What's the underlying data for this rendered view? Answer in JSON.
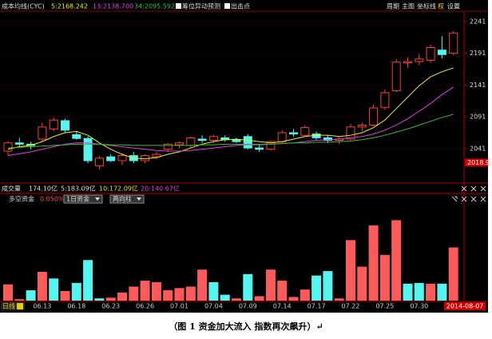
{
  "toolbar": [
    "周期",
    "主图",
    "坐标线",
    "权",
    "设置"
  ],
  "volume": {
    "title": "成交量",
    "value": "174.10亿",
    "ma": [
      "5:183.09亿",
      "10:172.09亿",
      "20:140.67亿"
    ]
  },
  "period_label": "日线",
  "caption": "（图 1    资金加大流入  指数再次飙升）↵",
  "chart_data": [
    {
      "type": "candlestick",
      "title": "成本均线(CYC)",
      "checkboxes": [
        "筹位异动预测",
        "出击点"
      ],
      "open": [
        2037,
        2050,
        2048,
        2056,
        2072,
        2085,
        2063,
        2057,
        2014,
        2028,
        2022,
        2030,
        2022,
        2028,
        2040,
        2047,
        2046,
        2056,
        2054,
        2058,
        2055,
        2060,
        2042,
        2040,
        2052,
        2066,
        2062,
        2064,
        2058,
        2054,
        2056,
        2075,
        2078,
        2106,
        2132,
        2176,
        2178,
        2180,
        2196,
        2191
      ],
      "high": [
        2053,
        2058,
        2052,
        2082,
        2090,
        2088,
        2068,
        2060,
        2030,
        2032,
        2034,
        2036,
        2032,
        2036,
        2050,
        2052,
        2060,
        2062,
        2063,
        2062,
        2058,
        2064,
        2048,
        2054,
        2070,
        2072,
        2078,
        2068,
        2062,
        2060,
        2080,
        2082,
        2110,
        2134,
        2182,
        2185,
        2190,
        2205,
        2218,
        2226
      ],
      "low": [
        2030,
        2044,
        2040,
        2052,
        2068,
        2066,
        2055,
        2018,
        2008,
        2020,
        2015,
        2018,
        2018,
        2024,
        2036,
        2042,
        2042,
        2050,
        2050,
        2052,
        2050,
        2040,
        2036,
        2038,
        2048,
        2060,
        2060,
        2055,
        2050,
        2048,
        2054,
        2068,
        2076,
        2102,
        2130,
        2168,
        2172,
        2176,
        2183,
        2188
      ],
      "close": [
        2050,
        2048,
        2046,
        2075,
        2086,
        2070,
        2057,
        2022,
        2026,
        2022,
        2030,
        2022,
        2030,
        2032,
        2048,
        2050,
        2058,
        2054,
        2060,
        2055,
        2052,
        2042,
        2040,
        2052,
        2066,
        2064,
        2074,
        2058,
        2054,
        2056,
        2075,
        2078,
        2105,
        2129,
        2177,
        2178,
        2182,
        2200,
        2189,
        2223
      ],
      "up_color": "#ff3c3c",
      "down_color": "#54f4f0",
      "series": [
        {
          "name": "5:2168.242",
          "color": "#f0f000",
          "values": [
            2040,
            2044,
            2046,
            2052,
            2060,
            2066,
            2068,
            2062,
            2050,
            2040,
            2032,
            2026,
            2025,
            2027,
            2032,
            2036,
            2042,
            2048,
            2052,
            2055,
            2056,
            2054,
            2052,
            2050,
            2052,
            2056,
            2060,
            2062,
            2062,
            2060,
            2062,
            2066,
            2074,
            2086,
            2104,
            2122,
            2140,
            2154,
            2162,
            2168
          ]
        },
        {
          "name": "13:2138.700",
          "color": "#e040e0",
          "values": [
            2030,
            2033,
            2036,
            2040,
            2044,
            2048,
            2050,
            2050,
            2048,
            2046,
            2044,
            2042,
            2040,
            2038,
            2037,
            2037,
            2038,
            2040,
            2042,
            2044,
            2046,
            2047,
            2047,
            2048,
            2049,
            2050,
            2052,
            2054,
            2055,
            2056,
            2058,
            2060,
            2064,
            2070,
            2078,
            2088,
            2100,
            2112,
            2126,
            2138
          ]
        },
        {
          "name": "34:2095.592",
          "color": "#30c030",
          "values": [
            2042,
            2043,
            2044,
            2045,
            2046,
            2047,
            2048,
            2048,
            2048,
            2047,
            2047,
            2046,
            2046,
            2046,
            2046,
            2046,
            2046,
            2047,
            2047,
            2048,
            2048,
            2048,
            2048,
            2048,
            2049,
            2050,
            2050,
            2051,
            2051,
            2052,
            2053,
            2055,
            2058,
            2062,
            2067,
            2072,
            2078,
            2084,
            2090,
            2095
          ]
        }
      ],
      "ylim": [
        1988,
        2256
      ],
      "yticks": [
        2041,
        2091,
        2141,
        2191,
        2241
      ],
      "cursor_price": 2018.9,
      "grid": true
    },
    {
      "type": "bar",
      "title": "多空资金",
      "ratio": "0.050%",
      "period": "1日资金",
      "style": "两向柱",
      "categories": [
        null,
        null,
        null,
        "06.13",
        null,
        null,
        "06.18",
        null,
        null,
        "06.23",
        null,
        null,
        "06.26",
        null,
        null,
        "07.01",
        null,
        null,
        "07.04",
        null,
        null,
        "07.09",
        null,
        null,
        "07.14",
        null,
        null,
        "07.17",
        null,
        null,
        "07.22",
        null,
        null,
        "07.25",
        null,
        null,
        "07.30",
        null,
        null,
        null
      ],
      "current_date": "2014-08-07",
      "values": [
        22,
        2,
        14,
        39,
        30,
        13,
        24,
        55,
        3,
        4,
        11,
        19,
        27,
        25,
        14,
        17,
        19,
        42,
        25,
        8,
        3,
        36,
        6,
        42,
        27,
        5,
        15,
        34,
        40,
        3,
        82,
        46,
        102,
        62,
        109,
        23,
        24,
        23,
        23,
        72
      ],
      "colors": [
        "#ff5a5a",
        "#ff5a5a",
        "#54f4f0",
        "#ff5a5a",
        "#54f4f0",
        "#ff5a5a",
        "#54f4f0",
        "#54f4f0",
        "#54f4f0",
        "#ff5a5a",
        "#ff5a5a",
        "#ff5a5a",
        "#ff5a5a",
        "#ff5a5a",
        "#ff5a5a",
        "#ff5a5a",
        "#ff5a5a",
        "#ff5a5a",
        "#54f4f0",
        "#54f4f0",
        "#ff5a5a",
        "#54f4f0",
        "#ff5a5a",
        "#ff5a5a",
        "#ff5a5a",
        "#ff5a5a",
        "#ff5a5a",
        "#54f4f0",
        "#54f4f0",
        "#ff5a5a",
        "#ff5a5a",
        "#ff5a5a",
        "#ff5a5a",
        "#ff5a5a",
        "#ff5a5a",
        "#54f4f0",
        "#54f4f0",
        "#ff5a5a",
        "#54f4f0",
        "#ff5a5a"
      ],
      "ylim": [
        0,
        130
      ]
    }
  ]
}
